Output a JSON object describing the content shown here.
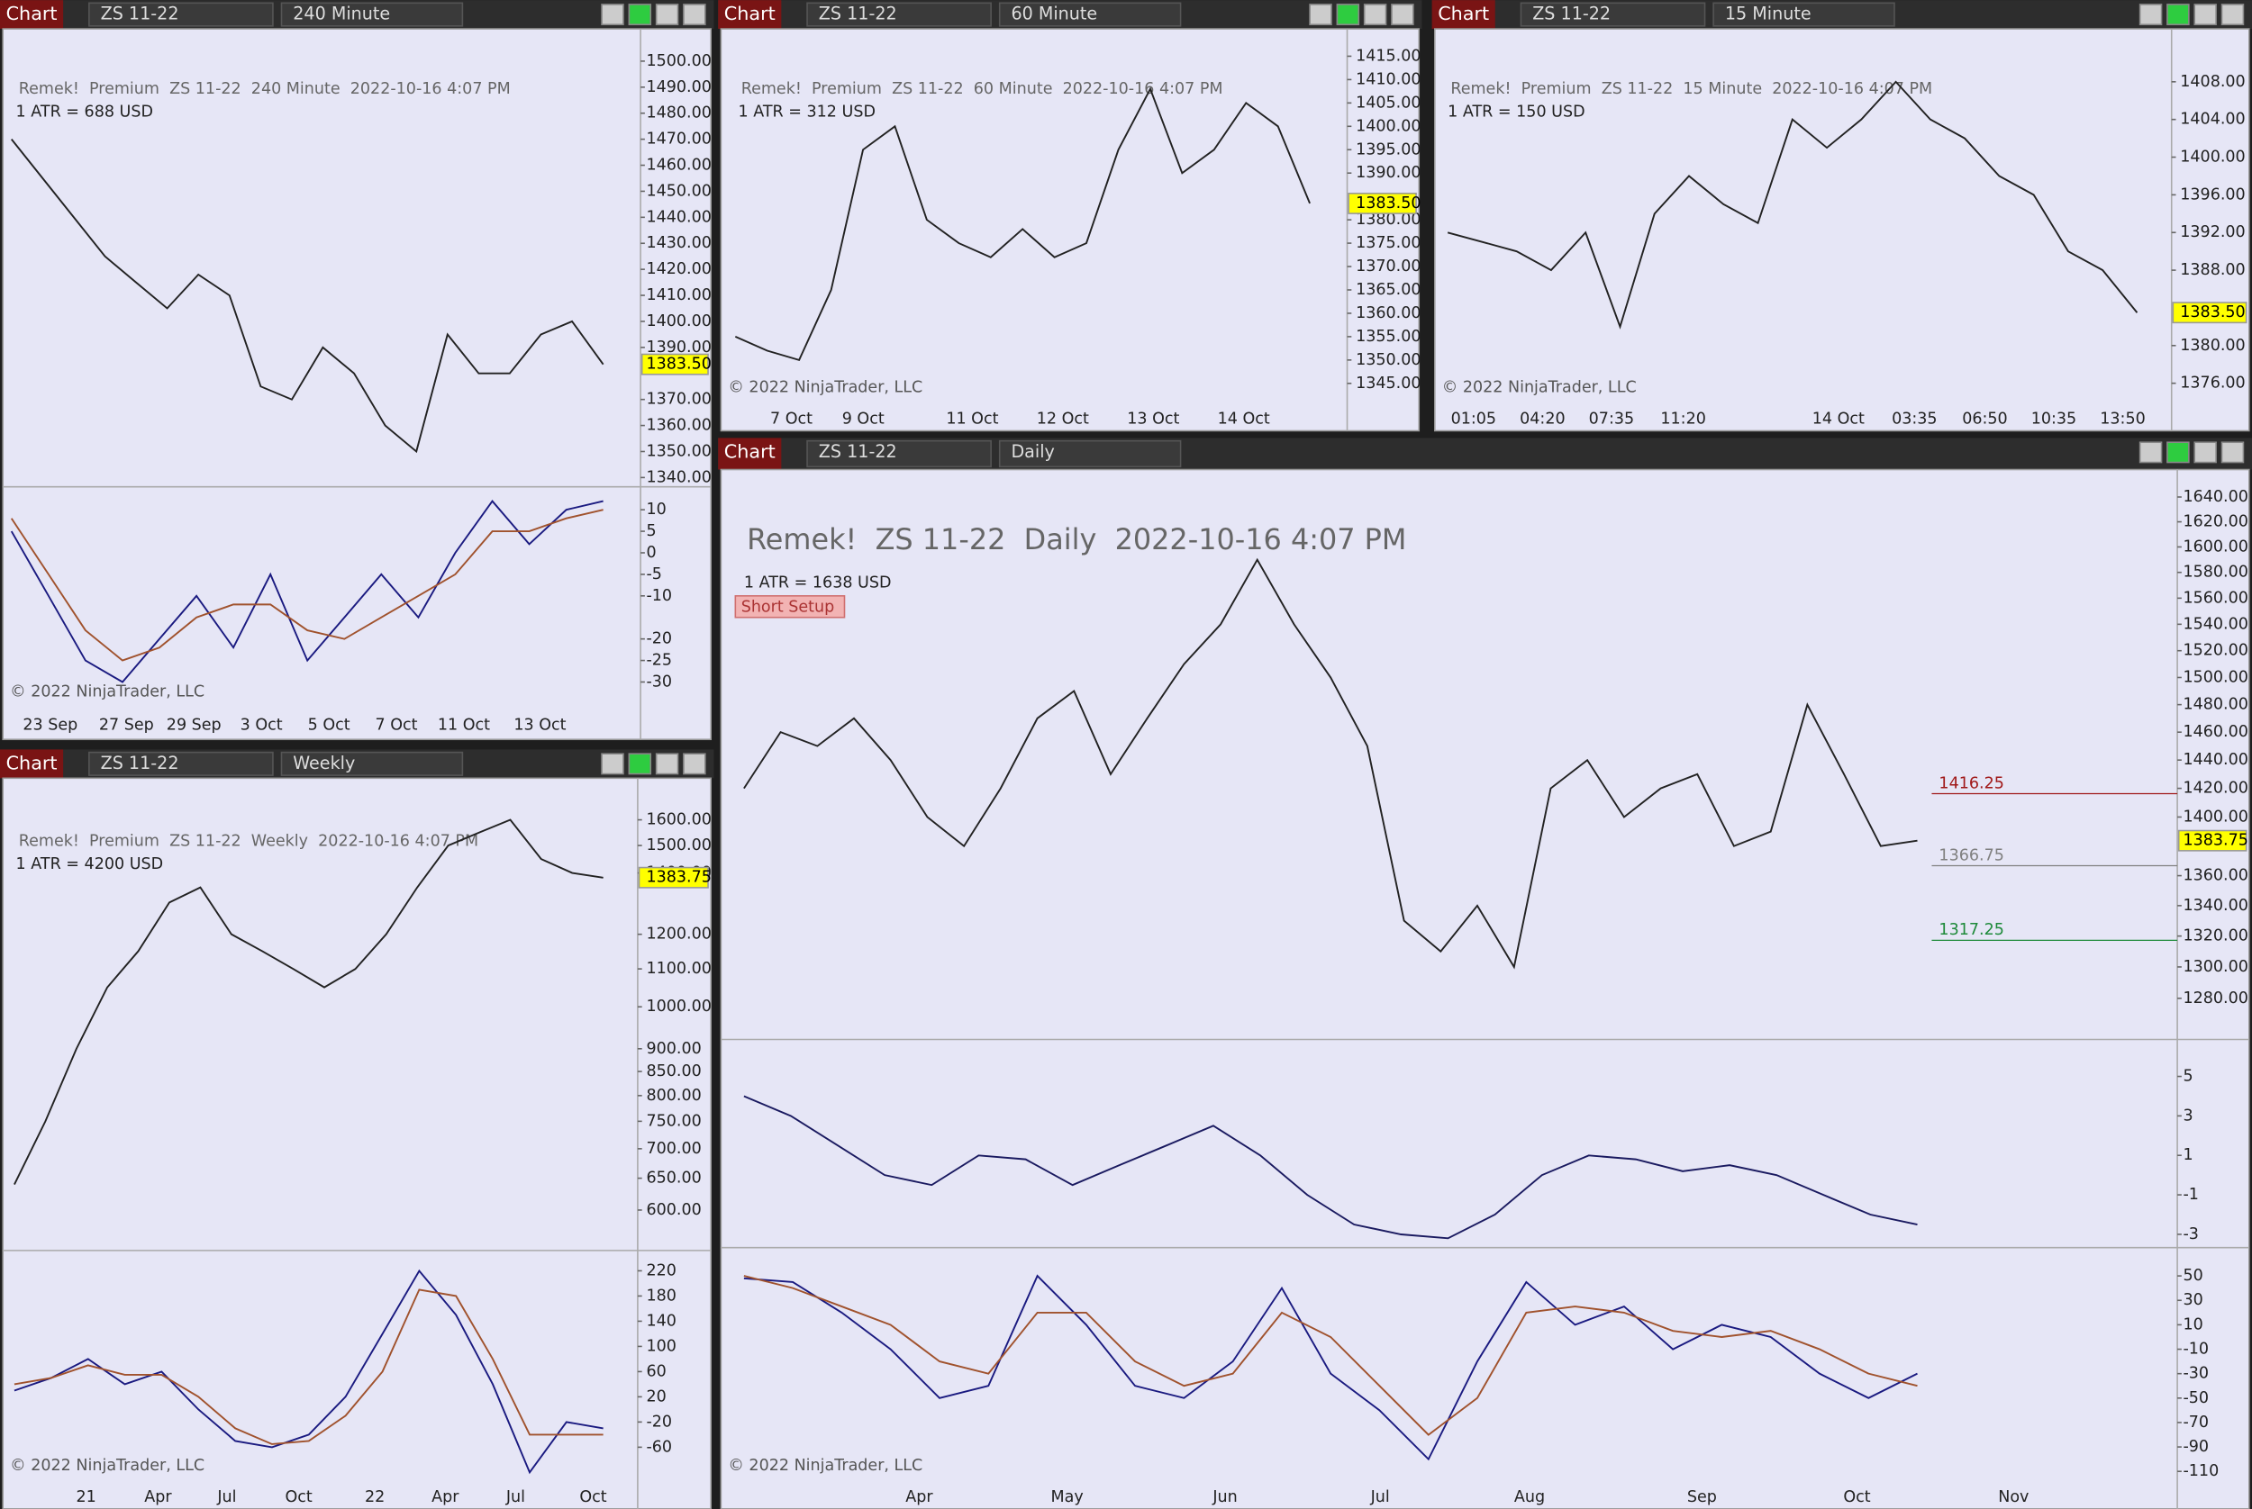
{
  "panels": [
    {
      "header": {
        "button": "Chart",
        "instrument": "ZS 11-22",
        "interval": "240 Minute"
      },
      "title": "Remek!  Premium  ZS 11-22  240 Minute  2022-10-16 4:07 PM",
      "atr": "1 ATR = 688 USD",
      "copyright": "© 2022 NinjaTrader, LLC",
      "x_labels": [
        "23 Sep",
        "27 Sep",
        "29 Sep",
        "3 Oct",
        "5 Oct",
        "7 Oct",
        "11 Oct",
        "13 Oct"
      ],
      "panes": [
        {
          "ylim": [
            1337,
            1508
          ],
          "log": false,
          "yticks": [
            {
              "value": 1500,
              "label": "1500.00"
            },
            {
              "value": 1490,
              "label": "1490.00"
            },
            {
              "value": 1480,
              "label": "1480.00"
            },
            {
              "value": 1470,
              "label": "1470.00"
            },
            {
              "value": 1460,
              "label": "1460.00"
            },
            {
              "value": 1450,
              "label": "1450.00"
            },
            {
              "value": 1440,
              "label": "1440.00"
            },
            {
              "value": 1430,
              "label": "1430.00"
            },
            {
              "value": 1420,
              "label": "1420.00"
            },
            {
              "value": 1410,
              "label": "1410.00"
            },
            {
              "value": 1400,
              "label": "1400.00"
            },
            {
              "value": 1390,
              "label": "1390.00"
            },
            {
              "value": 1370,
              "label": "1370.00"
            },
            {
              "value": 1360,
              "label": "1360.00"
            },
            {
              "value": 1350,
              "label": "1350.00"
            },
            {
              "value": 1340,
              "label": "1340.00"
            }
          ],
          "series": [
            {
              "color": "#222222",
              "values": [
                1470,
                1455,
                1440,
                1425,
                1415,
                1405,
                1418,
                1410,
                1375,
                1370,
                1390,
                1380,
                1360,
                1350,
                1395,
                1380,
                1380,
                1395,
                1400,
                1383.5
              ]
            }
          ],
          "price_labels": [
            {
              "value": 1383.5,
              "label": "1383.50",
              "color": "#000000",
              "boxed": true
            }
          ]
        },
        {
          "ylim": [
            -35,
            15
          ],
          "log": false,
          "yticks": [
            10,
            5,
            0,
            -5,
            -10,
            -20,
            -25,
            -30
          ],
          "series": [
            {
              "color": "#1a1a80",
              "values": [
                5,
                -10,
                -25,
                -30,
                -20,
                -10,
                -22,
                -5,
                -25,
                -15,
                -5,
                -15,
                0,
                12,
                2,
                10,
                12
              ]
            },
            {
              "color": "#a0522d",
              "values": [
                8,
                -5,
                -18,
                -25,
                -22,
                -15,
                -12,
                -12,
                -18,
                -20,
                -15,
                -10,
                -5,
                5,
                5,
                8,
                10
              ]
            }
          ],
          "price_labels": []
        }
      ]
    },
    {
      "header": {
        "button": "Chart",
        "instrument": "ZS 11-22",
        "interval": "60 Minute"
      },
      "title": "Remek!  Premium  ZS 11-22  60 Minute  2022-10-16 4:07 PM",
      "atr": "1 ATR = 312 USD",
      "copyright": "© 2022 NinjaTrader, LLC",
      "x_labels": [
        "7 Oct",
        "9 Oct",
        "11 Oct",
        "12 Oct",
        "13 Oct",
        "14 Oct"
      ],
      "panes": [
        {
          "ylim": [
            1341,
            1418.4
          ],
          "log": false,
          "yticks": [
            {
              "value": 1415,
              "label": "1415.00"
            },
            {
              "value": 1410,
              "label": "1410.00"
            },
            {
              "value": 1405,
              "label": "1405.00"
            },
            {
              "value": 1400,
              "label": "1400.00"
            },
            {
              "value": 1395,
              "label": "1395.00"
            },
            {
              "value": 1390,
              "label": "1390.00"
            },
            {
              "value": 1380,
              "label": "1380.00"
            },
            {
              "value": 1375,
              "label": "1375.00"
            },
            {
              "value": 1370,
              "label": "1370.00"
            },
            {
              "value": 1365,
              "label": "1365.00"
            },
            {
              "value": 1360,
              "label": "1360.00"
            },
            {
              "value": 1355,
              "label": "1355.00"
            },
            {
              "value": 1350,
              "label": "1350.00"
            },
            {
              "value": 1345,
              "label": "1345.00"
            }
          ],
          "series": [
            {
              "color": "#222222",
              "values": [
                1355,
                1352,
                1350,
                1365,
                1395,
                1400,
                1380,
                1375,
                1372,
                1378,
                1372,
                1375,
                1395,
                1408,
                1390,
                1395,
                1405,
                1400,
                1383.5
              ]
            }
          ],
          "price_labels": [
            {
              "value": 1383.5,
              "label": "1383.50",
              "color": "#000000",
              "boxed": true
            }
          ]
        }
      ]
    },
    {
      "header": {
        "button": "Chart",
        "instrument": "ZS 11-22",
        "interval": "15 Minute"
      },
      "title": "Remek!  Premium  ZS 11-22  15 Minute  2022-10-16 4:07 PM",
      "atr": "1 ATR = 150 USD",
      "copyright": "© 2022 NinjaTrader, LLC",
      "x_labels": [
        "01:05",
        "04:20",
        "07:35",
        "11:20",
        "14 Oct",
        "03:35",
        "06:50",
        "10:35",
        "13:50"
      ],
      "panes": [
        {
          "ylim": [
            1374,
            1412.4
          ],
          "log": false,
          "yticks": [
            {
              "value": 1408,
              "label": "1408.00"
            },
            {
              "value": 1404,
              "label": "1404.00"
            },
            {
              "value": 1400,
              "label": "1400.00"
            },
            {
              "value": 1396,
              "label": "1396.00"
            },
            {
              "value": 1392,
              "label": "1392.00"
            },
            {
              "value": 1388,
              "label": "1388.00"
            },
            {
              "value": 1380,
              "label": "1380.00"
            },
            {
              "value": 1376,
              "label": "1376.00"
            }
          ],
          "series": [
            {
              "color": "#222222",
              "values": [
                1392,
                1391,
                1390,
                1388,
                1392,
                1382,
                1394,
                1398,
                1395,
                1393,
                1404,
                1401,
                1404,
                1408,
                1404,
                1402,
                1398,
                1396,
                1390,
                1388,
                1383.5
              ]
            }
          ],
          "price_labels": [
            {
              "value": 1383.5,
              "label": "1383.50",
              "color": "#000000",
              "boxed": true
            }
          ]
        }
      ]
    },
    {
      "header": {
        "button": "Chart",
        "instrument": "ZS 11-22",
        "interval": "Weekly"
      },
      "title": "Remek!  Premium  ZS 11-22  Weekly  2022-10-16 4:07 PM",
      "atr": "1 ATR = 4200 USD",
      "copyright": "© 2022 NinjaTrader, LLC",
      "x_labels": [
        "21",
        "Apr",
        "Jul",
        "Oct",
        "22",
        "Apr",
        "Jul",
        "Oct"
      ],
      "panes": [
        {
          "ylim": [
            544,
            1726
          ],
          "log": true,
          "yticks": [
            {
              "value": 1600,
              "label": "1600.00"
            },
            {
              "value": 1500,
              "label": "1500.00"
            },
            {
              "value": 1400,
              "label": "1400.00"
            },
            {
              "value": 1200,
              "label": "1200.00"
            },
            {
              "value": 1100,
              "label": "1100.00"
            },
            {
              "value": 1000,
              "label": "1000.00"
            },
            {
              "value": 900,
              "label": "900.00"
            },
            {
              "value": 850,
              "label": "850.00"
            },
            {
              "value": 800,
              "label": "800.00"
            },
            {
              "value": 750,
              "label": "750.00"
            },
            {
              "value": 700,
              "label": "700.00"
            },
            {
              "value": 650,
              "label": "650.00"
            },
            {
              "value": 600,
              "label": "600.00"
            }
          ],
          "series": [
            {
              "color": "#222222",
              "values": [
                640,
                750,
                900,
                1050,
                1150,
                1300,
                1350,
                1200,
                1150,
                1100,
                1050,
                1100,
                1200,
                1350,
                1500,
                1550,
                1600,
                1450,
                1400,
                1383.75
              ]
            }
          ],
          "price_labels": [
            {
              "value": 1383.75,
              "label": "1383.75",
              "color": "#000000",
              "boxed": true
            }
          ]
        },
        {
          "ylim": [
            -110,
            250
          ],
          "log": false,
          "yticks": [
            220,
            180,
            140,
            100,
            60,
            20,
            -20,
            -60
          ],
          "series": [
            {
              "color": "#1a1a80",
              "values": [
                30,
                50,
                80,
                40,
                60,
                0,
                -50,
                -60,
                -40,
                20,
                120,
                220,
                150,
                40,
                -100,
                -20,
                -30
              ]
            },
            {
              "color": "#a0522d",
              "values": [
                40,
                50,
                70,
                55,
                55,
                20,
                -30,
                -55,
                -50,
                -10,
                60,
                190,
                180,
                80,
                -40,
                -40,
                -40
              ]
            }
          ],
          "price_labels": []
        }
      ]
    },
    {
      "header": {
        "button": "Chart",
        "instrument": "ZS 11-22",
        "interval": "Daily"
      },
      "title": "Remek!  ZS 11-22  Daily  2022-10-16 4:07 PM",
      "atr": "1 ATR = 1638 USD",
      "badge": "Short Setup",
      "copyright": "© 2022 NinjaTrader, LLC",
      "x_labels": [
        "Apr",
        "May",
        "Jun",
        "Jul",
        "Aug",
        "Sep",
        "Oct",
        "Nov"
      ],
      "panes": [
        {
          "ylim": [
            1256,
            1653
          ],
          "log": true,
          "yticks": [
            {
              "value": 1640,
              "label": "1640.00"
            },
            {
              "value": 1620,
              "label": "1620.00"
            },
            {
              "value": 1600,
              "label": "1600.00"
            },
            {
              "value": 1580,
              "label": "1580.00"
            },
            {
              "value": 1560,
              "label": "1560.00"
            },
            {
              "value": 1540,
              "label": "1540.00"
            },
            {
              "value": 1520,
              "label": "1520.00"
            },
            {
              "value": 1500,
              "label": "1500.00"
            },
            {
              "value": 1480,
              "label": "1480.00"
            },
            {
              "value": 1460,
              "label": "1460.00"
            },
            {
              "value": 1440,
              "label": "1440.00"
            },
            {
              "value": 1420,
              "label": "1420.00"
            },
            {
              "value": 1400,
              "label": "1400.00"
            },
            {
              "value": 1360,
              "label": "1360.00"
            },
            {
              "value": 1340,
              "label": "1340.00"
            },
            {
              "value": 1320,
              "label": "1320.00"
            },
            {
              "value": 1300,
              "label": "1300.00"
            },
            {
              "value": 1280,
              "label": "1280.00"
            }
          ],
          "series": [
            {
              "color": "#222222",
              "values": [
                1420,
                1460,
                1450,
                1470,
                1440,
                1400,
                1380,
                1420,
                1470,
                1490,
                1430,
                1470,
                1510,
                1540,
                1590,
                1540,
                1500,
                1450,
                1330,
                1310,
                1340,
                1300,
                1420,
                1440,
                1400,
                1420,
                1430,
                1380,
                1390,
                1480,
                1430,
                1380,
                1383.75
              ]
            }
          ],
          "price_labels": [
            {
              "value": 1383.75,
              "label": "1383.75",
              "color": "#000000",
              "boxed": true
            },
            {
              "value": 1416.25,
              "label": "1416.25",
              "color": "#a01818",
              "boxed": false
            },
            {
              "value": 1366.75,
              "label": "1366.75",
              "color": "#808080",
              "boxed": false
            },
            {
              "value": 1317.25,
              "label": "1317.25",
              "color": "#1e8a3a",
              "boxed": false
            }
          ]
        },
        {
          "ylim": [
            -3.6,
            6.8
          ],
          "log": false,
          "yticks": [
            5,
            3,
            1,
            -1,
            -3
          ],
          "series": [
            {
              "color": "#1a1a60",
              "values": [
                4,
                3,
                1.5,
                0,
                -0.5,
                1,
                0.8,
                -0.5,
                0.5,
                1.5,
                2.5,
                1,
                -1,
                -2.5,
                -3,
                -3.2,
                -2,
                0,
                1,
                0.8,
                0.2,
                0.5,
                0,
                -1,
                -2,
                -2.5
              ]
            }
          ],
          "price_labels": []
        },
        {
          "ylim": [
            -116,
            72
          ],
          "log": false,
          "yticks": [
            50,
            30,
            10,
            -10,
            -30,
            -50,
            -70,
            -90,
            -110
          ],
          "series": [
            {
              "color": "#1a1a80",
              "values": [
                48,
                45,
                20,
                -10,
                -50,
                -40,
                50,
                10,
                -40,
                -50,
                -20,
                40,
                -30,
                -60,
                -100,
                -20,
                45,
                10,
                25,
                -10,
                10,
                0,
                -30,
                -50,
                -30
              ]
            },
            {
              "color": "#a0522d",
              "values": [
                50,
                40,
                25,
                10,
                -20,
                -30,
                20,
                20,
                -20,
                -40,
                -30,
                20,
                0,
                -40,
                -80,
                -50,
                20,
                25,
                20,
                5,
                0,
                5,
                -10,
                -30,
                -40
              ]
            }
          ],
          "price_labels": []
        }
      ]
    }
  ]
}
